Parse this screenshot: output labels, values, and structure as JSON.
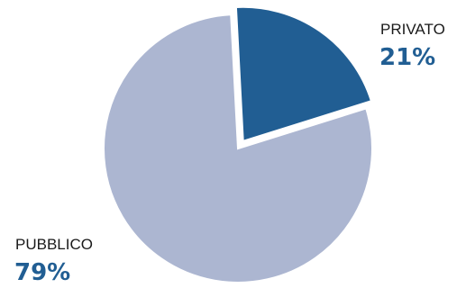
{
  "chart_data": {
    "type": "pie",
    "title": "",
    "slices": [
      {
        "label": "PRIVATO",
        "value": 21,
        "value_text": "21%",
        "color": "#215e93",
        "label_color": "#215e93",
        "exploded": true
      },
      {
        "label": "PUBBLICO",
        "value": 79,
        "value_text": "79%",
        "color": "#acb6d1",
        "label_color": "#215e93",
        "exploded": false
      }
    ],
    "legend": "none"
  }
}
